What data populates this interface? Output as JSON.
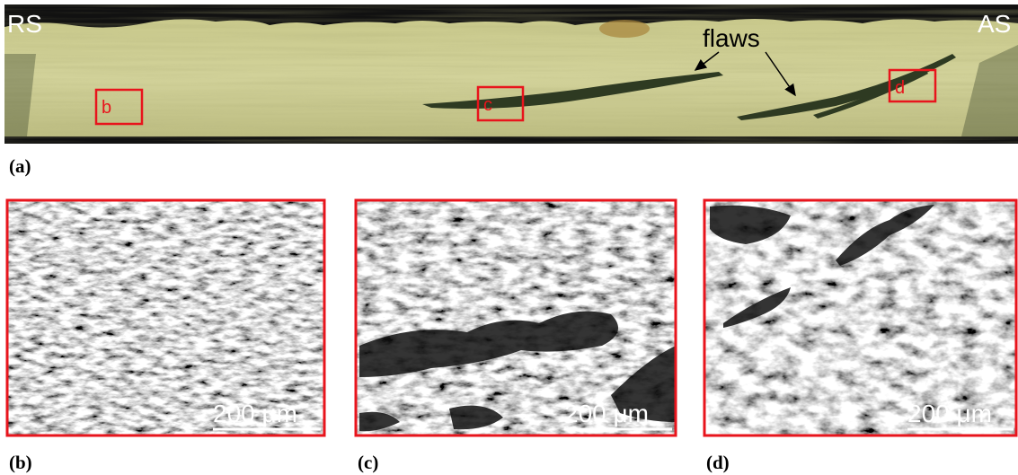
{
  "panel_a": {
    "label": "(a)",
    "left_label": "RS",
    "right_label": "AS",
    "annotation": "flaws",
    "boxes": [
      "b",
      "c",
      "d"
    ]
  },
  "panels": [
    {
      "label": "(b)",
      "scale_bar": "200 μm"
    },
    {
      "label": "(c)",
      "scale_bar": "200 μm"
    },
    {
      "label": "(d)",
      "scale_bar": "200 μm"
    }
  ]
}
